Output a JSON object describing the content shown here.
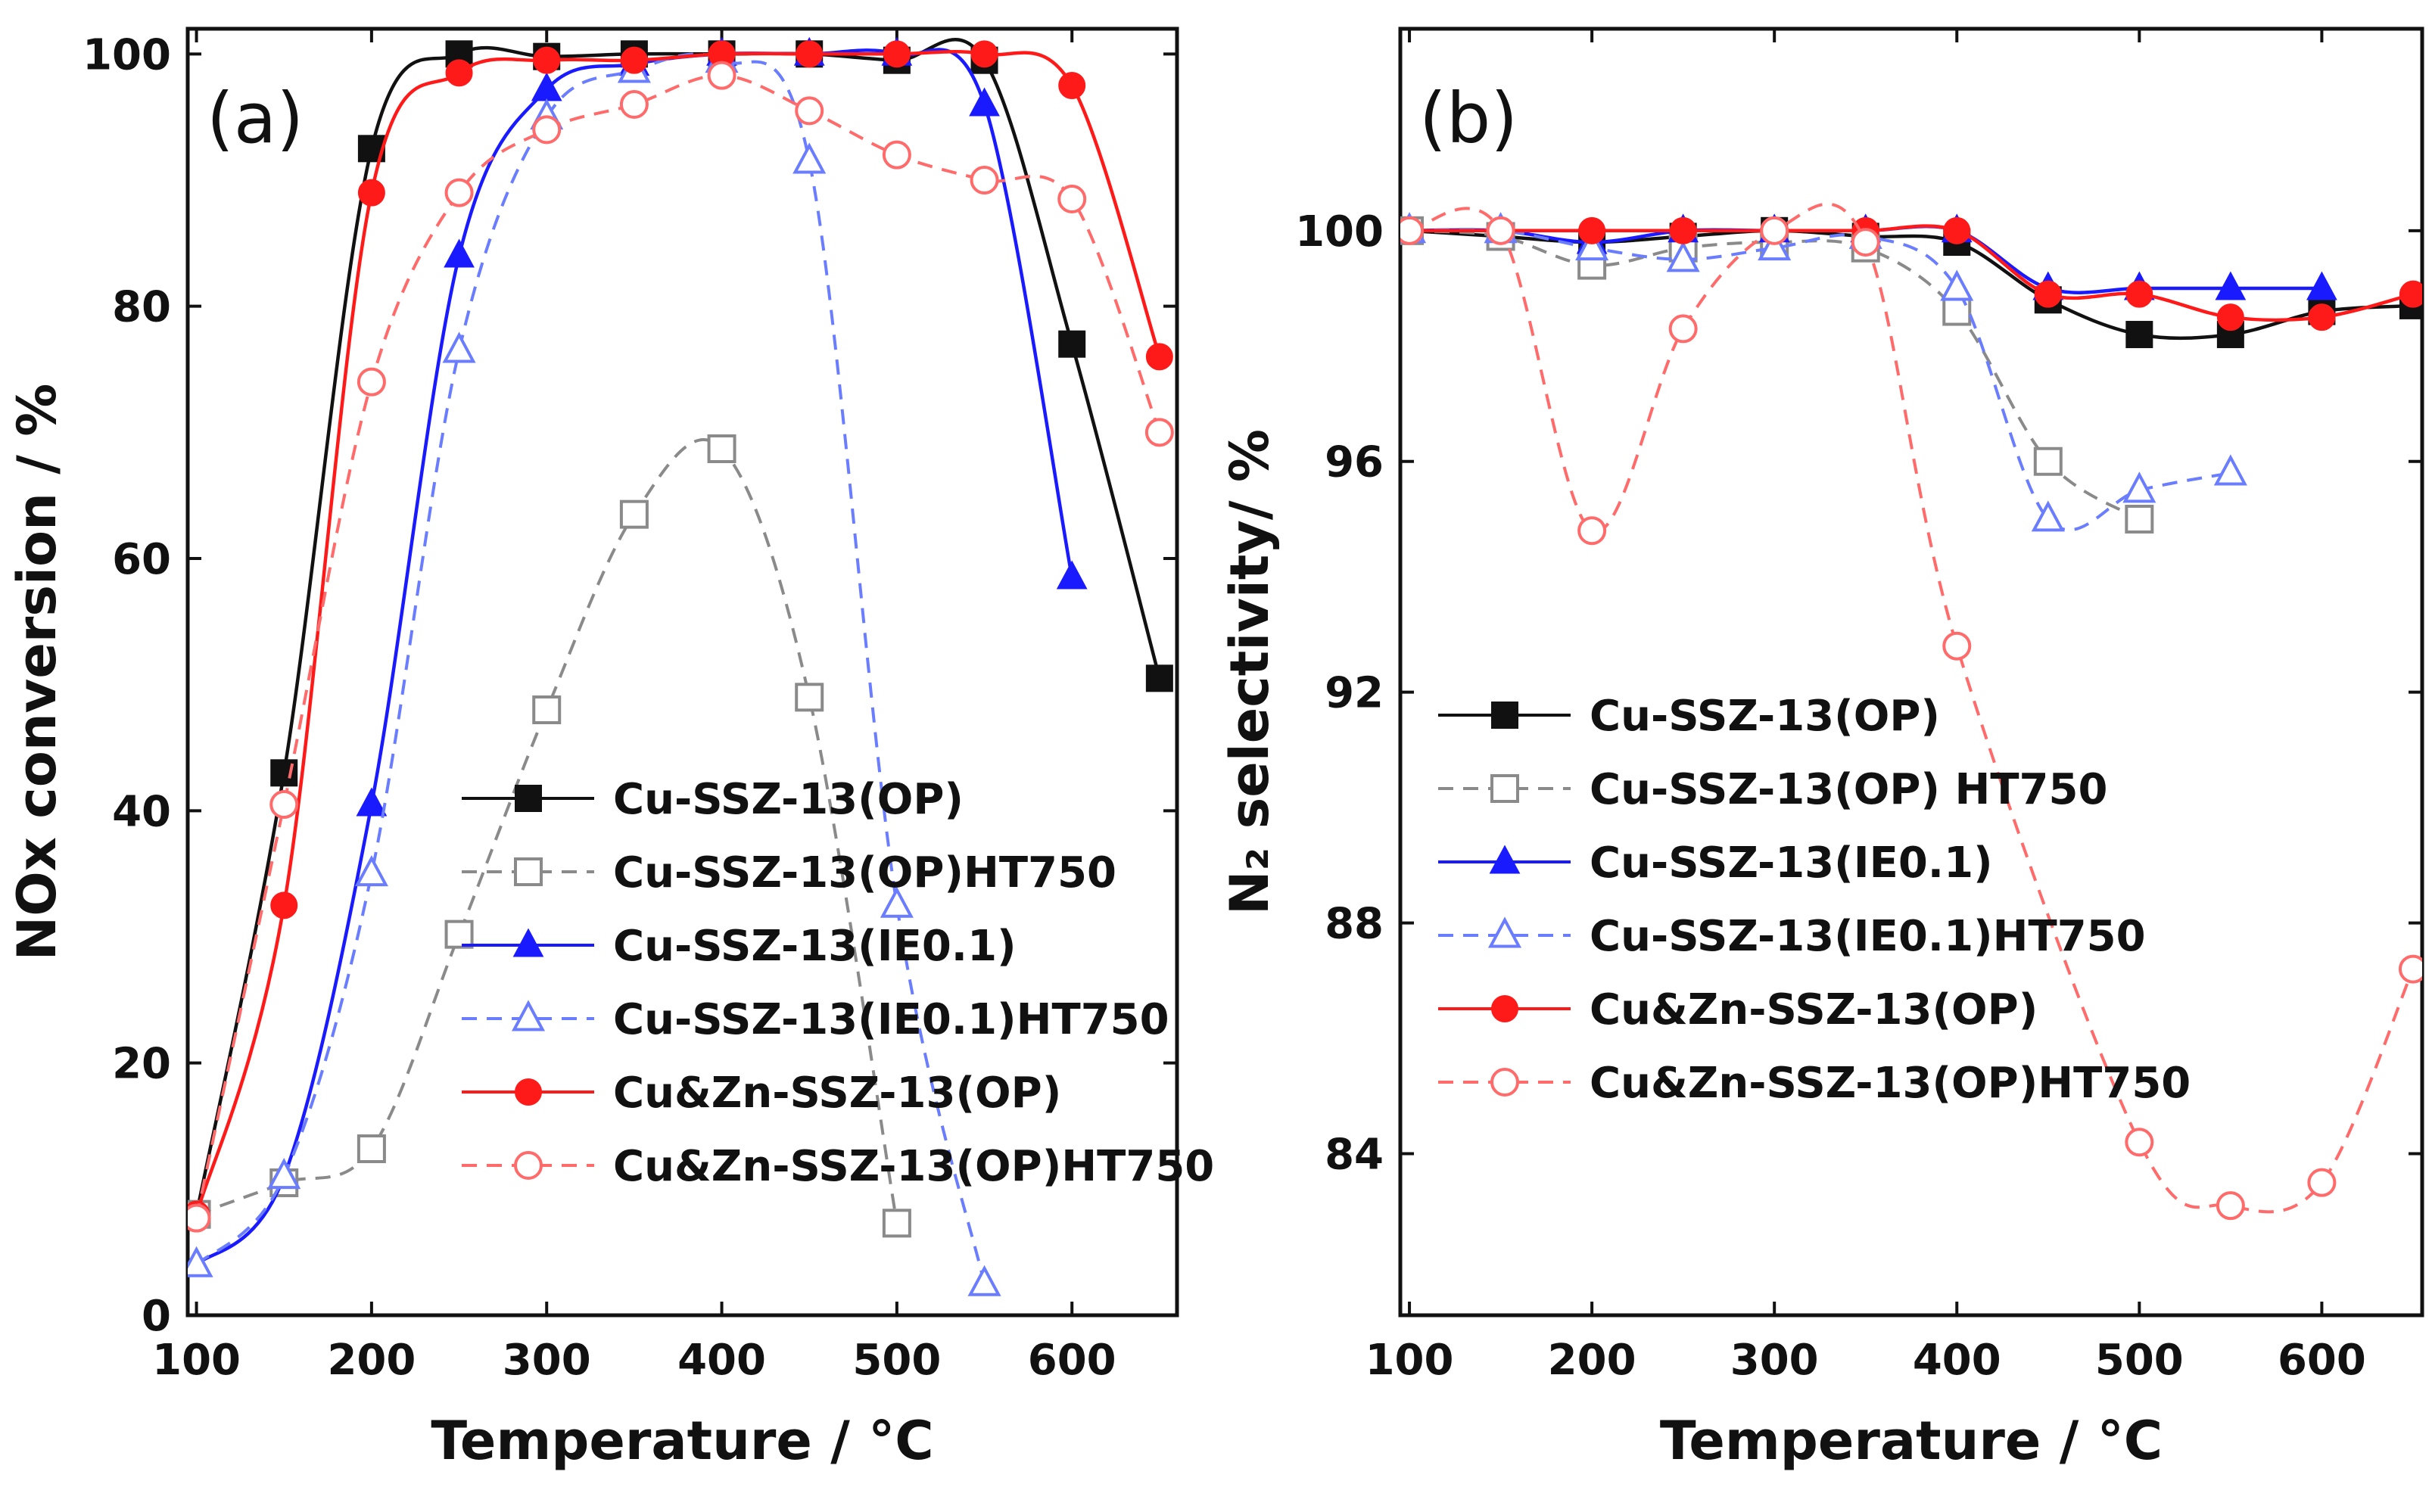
{
  "colors": {
    "black": "#111111",
    "gray": "#8a8a8a",
    "blue": "#1a1aff",
    "light_blue": "#6a7dff",
    "red": "#ff1a1a",
    "light_red": "#ff6a6a"
  },
  "chart_data": [
    {
      "type": "line",
      "panel_label": "(a)",
      "xlabel": "Temperature / °C",
      "ylabel": "NOx conversion / %",
      "xlim": [
        95,
        660
      ],
      "ylim": [
        0,
        102
      ],
      "xticks": [
        100,
        200,
        300,
        400,
        500,
        600
      ],
      "yticks": [
        0,
        20,
        40,
        60,
        80,
        100
      ],
      "legend_position": "lower-right",
      "series": [
        {
          "name": "Cu-SSZ-13(OP)",
          "marker": "square",
          "filled": true,
          "dashed": false,
          "color": "#111111",
          "x": [
            100,
            150,
            200,
            250,
            300,
            350,
            400,
            450,
            500,
            550,
            600,
            650
          ],
          "y": [
            8,
            43,
            92.5,
            100,
            99.8,
            100,
            100,
            100,
            99.5,
            99.5,
            77,
            50.5
          ]
        },
        {
          "name": "Cu-SSZ-13(OP)HT750",
          "marker": "square",
          "filled": false,
          "dashed": true,
          "color": "#8a8a8a",
          "x": [
            100,
            150,
            200,
            250,
            300,
            350,
            400,
            450,
            500
          ],
          "y": [
            8,
            10.5,
            13.2,
            30.2,
            48,
            63.5,
            68.7,
            49,
            7.3
          ]
        },
        {
          "name": "Cu-SSZ-13(IE0.1)",
          "marker": "triangle",
          "filled": true,
          "dashed": false,
          "color": "#1a1aff",
          "x": [
            100,
            150,
            200,
            250,
            300,
            350,
            400,
            450,
            500,
            550,
            600
          ],
          "y": [
            4,
            11,
            40.5,
            84,
            97.2,
            99.2,
            100,
            100,
            100,
            96,
            58.5
          ]
        },
        {
          "name": "Cu-SSZ-13(IE0.1)HT750",
          "marker": "triangle",
          "filled": false,
          "dashed": true,
          "color": "#6a7dff",
          "x": [
            100,
            150,
            200,
            250,
            300,
            350,
            400,
            450,
            500,
            550
          ],
          "y": [
            4,
            11,
            35,
            76.5,
            95,
            98.7,
            99.5,
            91.5,
            32.5,
            2.5
          ]
        },
        {
          "name": "Cu&Zn-SSZ-13(OP)",
          "marker": "circle",
          "filled": true,
          "dashed": false,
          "color": "#ff1a1a",
          "x": [
            100,
            150,
            200,
            250,
            300,
            350,
            400,
            450,
            500,
            550,
            600,
            650
          ],
          "y": [
            8,
            32.5,
            89,
            98.5,
            99.5,
            99.5,
            100,
            100,
            100,
            100,
            97.5,
            76
          ]
        },
        {
          "name": "Cu&Zn-SSZ-13(OP)HT750",
          "marker": "circle",
          "filled": false,
          "dashed": true,
          "color": "#ff6a6a",
          "x": [
            100,
            150,
            200,
            250,
            300,
            350,
            400,
            450,
            500,
            550,
            600,
            650
          ],
          "y": [
            7.7,
            40.5,
            74,
            89,
            94,
            96,
            98.3,
            95.5,
            92,
            90,
            88.5,
            70
          ]
        }
      ]
    },
    {
      "type": "line",
      "panel_label": "(b)",
      "xlabel": "Temperature / °C",
      "ylabel": "N₂ selectivity/ %",
      "xlim": [
        95,
        655
      ],
      "ylim": [
        81.2,
        103.5
      ],
      "xticks": [
        100,
        200,
        300,
        400,
        500,
        600
      ],
      "yticks": [
        84,
        88,
        92,
        96,
        100
      ],
      "legend_position": "center-left",
      "series": [
        {
          "name": "Cu-SSZ-13(OP)",
          "marker": "square",
          "filled": true,
          "dashed": false,
          "color": "#111111",
          "x": [
            100,
            150,
            200,
            250,
            300,
            350,
            400,
            450,
            500,
            550,
            600,
            650
          ],
          "y": [
            100,
            99.9,
            99.8,
            99.9,
            100,
            99.9,
            99.8,
            98.8,
            98.2,
            98.2,
            98.6,
            98.7
          ]
        },
        {
          "name": "Cu-SSZ-13(OP) HT750",
          "marker": "square",
          "filled": false,
          "dashed": true,
          "color": "#8a8a8a",
          "x": [
            100,
            150,
            200,
            250,
            300,
            350,
            400,
            450,
            500
          ],
          "y": [
            100,
            99.9,
            99.4,
            99.7,
            99.8,
            99.7,
            98.6,
            96,
            95
          ]
        },
        {
          "name": "Cu-SSZ-13(IE0.1)",
          "marker": "triangle",
          "filled": true,
          "dashed": false,
          "color": "#1a1aff",
          "x": [
            100,
            150,
            200,
            250,
            300,
            350,
            400,
            450,
            500,
            550,
            600
          ],
          "y": [
            100,
            100,
            99.8,
            100,
            100,
            100,
            100,
            99,
            99,
            99,
            99
          ]
        },
        {
          "name": "Cu-SSZ-13(IE0.1)HT750",
          "marker": "triangle",
          "filled": false,
          "dashed": true,
          "color": "#6a7dff",
          "x": [
            100,
            150,
            200,
            250,
            300,
            350,
            400,
            450,
            500,
            550
          ],
          "y": [
            100,
            100,
            99.7,
            99.5,
            99.7,
            99.9,
            99,
            95,
            95.5,
            95.8
          ]
        },
        {
          "name": "Cu&Zn-SSZ-13(OP)",
          "marker": "circle",
          "filled": true,
          "dashed": false,
          "color": "#ff1a1a",
          "x": [
            100,
            150,
            200,
            250,
            300,
            350,
            400,
            450,
            500,
            550,
            600,
            650
          ],
          "y": [
            100,
            100,
            100,
            100,
            100,
            100,
            100,
            98.9,
            98.9,
            98.5,
            98.5,
            98.9
          ]
        },
        {
          "name": "Cu&Zn-SSZ-13(OP)HT750",
          "marker": "circle",
          "filled": false,
          "dashed": true,
          "color": "#ff6a6a",
          "x": [
            100,
            150,
            200,
            250,
            300,
            350,
            400,
            500,
            550,
            600,
            650
          ],
          "y": [
            100,
            100,
            94.8,
            98.3,
            100,
            99.8,
            92.8,
            84.2,
            83.1,
            83.5,
            87.2
          ]
        }
      ]
    }
  ]
}
